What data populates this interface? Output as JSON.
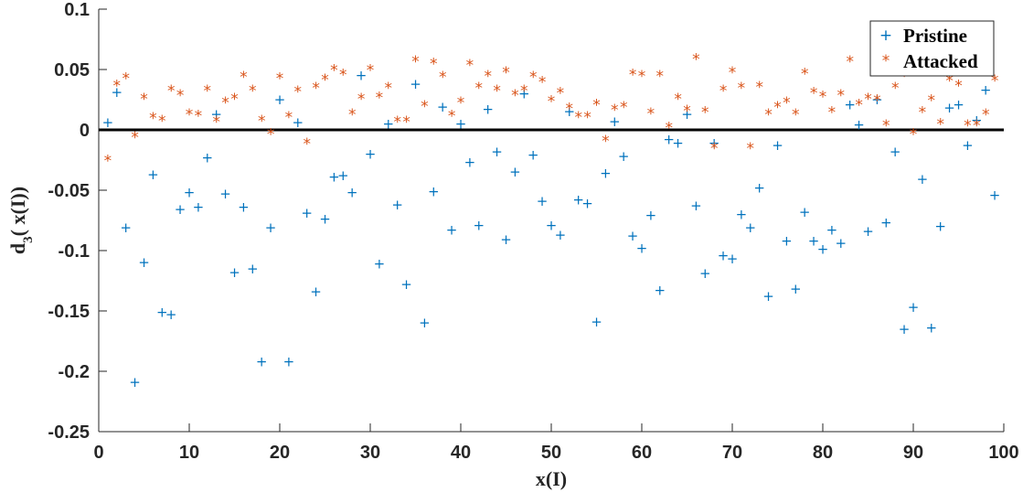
{
  "chart_data": {
    "type": "scatter",
    "xlabel": "x(I)",
    "ylabel": {
      "main": "d",
      "subscript": "3",
      "rest": "( x(I))"
    },
    "xlim": [
      0,
      100
    ],
    "ylim": [
      -0.25,
      0.1
    ],
    "xticks": [
      0,
      10,
      20,
      30,
      40,
      50,
      60,
      70,
      80,
      90,
      100
    ],
    "yticks": [
      0.1,
      0.05,
      0,
      -0.05,
      -0.1,
      -0.15,
      -0.2,
      -0.25
    ],
    "ytick_labels": [
      "0.1",
      "0.05",
      "0",
      "-0.05",
      "-0.1",
      "-0.15",
      "-0.2",
      "-0.25"
    ],
    "grid": false,
    "legend_position": "top-right",
    "reference_line": {
      "y": 0,
      "color": "#000000"
    },
    "series": [
      {
        "name": "Pristine",
        "marker": "+",
        "color": "#0072bd",
        "x": [
          1,
          2,
          3,
          4,
          5,
          6,
          7,
          8,
          9,
          10,
          11,
          12,
          13,
          14,
          15,
          16,
          17,
          18,
          19,
          20,
          21,
          22,
          23,
          24,
          25,
          26,
          27,
          28,
          29,
          30,
          31,
          32,
          33,
          34,
          35,
          36,
          37,
          38,
          39,
          40,
          41,
          42,
          43,
          44,
          45,
          46,
          47,
          48,
          49,
          50,
          51,
          52,
          53,
          54,
          55,
          56,
          57,
          58,
          59,
          60,
          61,
          62,
          63,
          64,
          65,
          66,
          67,
          68,
          69,
          70,
          71,
          72,
          73,
          74,
          75,
          76,
          77,
          78,
          79,
          80,
          81,
          82,
          83,
          84,
          85,
          86,
          87,
          88,
          89,
          90,
          91,
          92,
          93,
          94,
          95,
          96,
          97,
          98,
          99
        ],
        "y": [
          0.006,
          0.031,
          -0.081,
          -0.209,
          -0.11,
          -0.037,
          -0.151,
          -0.153,
          -0.066,
          -0.052,
          -0.064,
          -0.023,
          0.013,
          -0.053,
          -0.118,
          -0.064,
          -0.115,
          -0.192,
          -0.081,
          0.025,
          -0.192,
          0.006,
          -0.069,
          -0.134,
          -0.074,
          -0.039,
          -0.038,
          -0.052,
          0.045,
          -0.02,
          -0.111,
          0.005,
          -0.062,
          -0.128,
          0.038,
          -0.16,
          -0.051,
          0.019,
          -0.083,
          0.005,
          -0.027,
          -0.079,
          0.017,
          -0.018,
          -0.091,
          -0.035,
          0.03,
          -0.021,
          -0.059,
          -0.079,
          -0.087,
          0.015,
          -0.058,
          -0.061,
          -0.159,
          -0.036,
          0.007,
          -0.022,
          -0.088,
          -0.098,
          -0.071,
          -0.133,
          -0.008,
          -0.011,
          0.013,
          -0.063,
          -0.119,
          -0.011,
          -0.104,
          -0.107,
          -0.07,
          -0.081,
          -0.048,
          -0.138,
          -0.013,
          -0.092,
          -0.132,
          -0.068,
          -0.092,
          -0.099,
          -0.083,
          -0.094,
          0.021,
          0.004,
          -0.084,
          0.025,
          -0.077,
          -0.018,
          -0.165,
          -0.147,
          -0.041,
          -0.164,
          -0.08,
          0.018,
          0.021,
          -0.013,
          0.008,
          0.033,
          -0.054
        ]
      },
      {
        "name": "Attacked",
        "marker": "*",
        "color": "#d95319",
        "x": [
          1,
          2,
          3,
          4,
          5,
          6,
          7,
          8,
          9,
          10,
          11,
          12,
          13,
          14,
          15,
          16,
          17,
          18,
          19,
          20,
          21,
          22,
          23,
          24,
          25,
          26,
          27,
          28,
          29,
          30,
          31,
          32,
          33,
          34,
          35,
          36,
          37,
          38,
          39,
          40,
          41,
          42,
          43,
          44,
          45,
          46,
          47,
          48,
          49,
          50,
          51,
          52,
          53,
          54,
          55,
          56,
          57,
          58,
          59,
          60,
          61,
          62,
          63,
          64,
          65,
          66,
          67,
          68,
          69,
          70,
          71,
          72,
          73,
          74,
          75,
          76,
          77,
          78,
          79,
          80,
          81,
          82,
          83,
          84,
          85,
          86,
          87,
          88,
          89,
          90,
          91,
          92,
          93,
          94,
          95,
          96,
          97,
          98,
          99
        ],
        "y": [
          -0.026,
          0.036,
          0.042,
          -0.007,
          0.025,
          0.009,
          0.007,
          0.032,
          0.028,
          0.012,
          0.011,
          0.032,
          0.006,
          0.022,
          0.025,
          0.043,
          0.032,
          0.007,
          -0.004,
          0.042,
          0.01,
          0.031,
          -0.012,
          0.034,
          0.041,
          0.049,
          0.045,
          0.012,
          0.025,
          0.049,
          0.026,
          0.034,
          0.006,
          0.006,
          0.056,
          0.019,
          0.054,
          0.043,
          0.011,
          0.022,
          0.053,
          0.034,
          0.044,
          0.032,
          0.047,
          0.028,
          0.032,
          0.043,
          0.039,
          0.023,
          0.03,
          0.017,
          0.01,
          0.01,
          0.02,
          -0.01,
          0.016,
          0.018,
          0.045,
          0.044,
          0.013,
          0.044,
          0.001,
          0.025,
          0.015,
          0.058,
          0.014,
          -0.016,
          0.032,
          0.047,
          0.034,
          -0.016,
          0.035,
          0.012,
          0.018,
          0.022,
          0.012,
          0.046,
          0.03,
          0.027,
          0.014,
          0.028,
          0.056,
          0.02,
          0.025,
          0.024,
          0.003,
          0.034,
          0.044,
          -0.004,
          0.014,
          0.024,
          0.004,
          0.04,
          0.036,
          0.003,
          0.003,
          0.012,
          0.04
        ]
      }
    ]
  }
}
